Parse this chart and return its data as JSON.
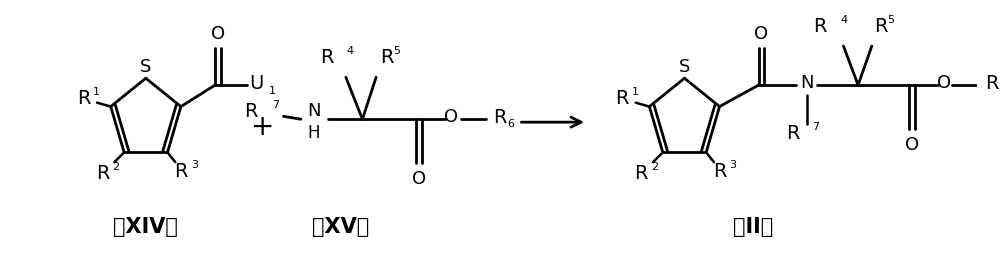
{
  "background_color": "#ffffff",
  "fig_width": 10.0,
  "fig_height": 2.57,
  "dpi": 100,
  "label_XIV": "（XIV）",
  "label_XV": "（XV）",
  "label_II": "（II）",
  "font_size_labels": 14,
  "font_size_subscript": 8,
  "font_size_atom": 13,
  "font_size_compound": 15
}
